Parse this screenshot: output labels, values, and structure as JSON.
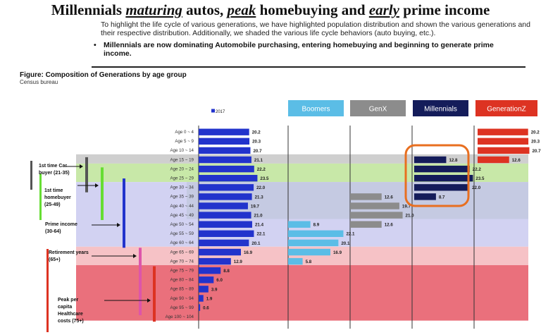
{
  "header": {
    "title_parts": [
      {
        "text": "Millennials ",
        "em": false
      },
      {
        "text": "maturing",
        "em": true
      },
      {
        "text": " autos, ",
        "em": false
      },
      {
        "text": "peak",
        "em": true
      },
      {
        "text": " homebuying and ",
        "em": false
      },
      {
        "text": "early",
        "em": true
      },
      {
        "text": " prime income",
        "em": false
      }
    ],
    "intro": "To highlight the life cycle of various generations, we have highlighted population distribution and shown the various generations and their respective distribution.  Additionally, we shaded the various life cycle behaviors (auto buying, etc.).",
    "bullet_marker": "•",
    "bullet": "Millennials are now dominating Automobile purchasing, entering homebuying and beginning to generate prime income."
  },
  "figure": {
    "title": "Figure: Composition of Generations by age group",
    "source": "Census bureau"
  },
  "colors": {
    "total_bar": "#2233cc",
    "boomers": "#5bbde6",
    "genx": "#8c8c8c",
    "millennials": "#141c5a",
    "genz": "#dd3322",
    "auto_band": "#cfcfcf",
    "home_band": "#c8e8a8",
    "prime_band": "#d2d2f2",
    "retire_band": "#f6c2c6",
    "peak_band": "#ea707c",
    "highlight": "#e86f20"
  },
  "chart_data": {
    "type": "bar",
    "orientation": "horizontal",
    "categories": [
      "Age 0 ~ 4",
      "Age 5 ~ 9",
      "Age 10 ~ 14",
      "Age 15 ~ 19",
      "Age 20 ~ 24",
      "Age 25 ~ 29",
      "Age 30 ~ 34",
      "Age 35 ~ 39",
      "Age 40 ~ 44",
      "Age 45 ~ 49",
      "Age 50 ~ 54",
      "Age 55 ~ 59",
      "Age 60 ~ 64",
      "Age 65 ~ 69",
      "Age 70 ~ 74",
      "Age 75 ~ 79",
      "Age 80 ~ 84",
      "Age 85 ~ 89",
      "Age 90 ~ 94",
      "Age 95 ~ 99",
      "Age 100 ~ 104"
    ],
    "legend": {
      "marker_label": "2017"
    },
    "series": [
      {
        "name": "2017",
        "values": [
          20.2,
          20.3,
          20.7,
          21.1,
          22.2,
          23.5,
          22.0,
          21.3,
          19.7,
          21.0,
          21.4,
          22.1,
          20.1,
          16.9,
          12.9,
          8.8,
          6.0,
          3.9,
          1.9,
          0.6,
          null
        ]
      },
      {
        "name": "Boomers",
        "values": [
          null,
          null,
          null,
          null,
          null,
          null,
          null,
          null,
          null,
          null,
          8.9,
          22.1,
          20.1,
          16.9,
          5.8,
          null,
          null,
          null,
          null,
          null,
          null
        ]
      },
      {
        "name": "GenX",
        "values": [
          null,
          null,
          null,
          null,
          null,
          null,
          null,
          12.6,
          19.7,
          21.0,
          12.6,
          null,
          null,
          null,
          null,
          null,
          null,
          null,
          null,
          null,
          null
        ]
      },
      {
        "name": "Millennials",
        "values": [
          null,
          null,
          null,
          12.8,
          22.2,
          23.5,
          22.0,
          8.7,
          null,
          null,
          null,
          null,
          null,
          null,
          null,
          null,
          null,
          null,
          null,
          null,
          null
        ]
      },
      {
        "name": "GenerationZ",
        "values": [
          20.2,
          20.3,
          20.7,
          12.6,
          null,
          null,
          null,
          null,
          null,
          null,
          null,
          null,
          null,
          null,
          null,
          null,
          null,
          null,
          null,
          null,
          null
        ]
      }
    ],
    "value_labels": {
      "2017": [
        "20.2",
        "20.3",
        "20.7",
        "21.1",
        "22.2",
        "23.5",
        "22.0",
        "21.3",
        "19.7",
        "21.0",
        "21.4",
        "22.1",
        "20.1",
        "16.9",
        "12.9",
        "8.8",
        "6.0",
        "3.9",
        "1.9",
        "0.6",
        ""
      ],
      "Boomers": [
        "",
        "",
        "",
        "",
        "",
        "",
        "",
        "",
        "",
        "",
        "8.9",
        "22.1",
        "20.1",
        "16.9",
        "5.8",
        "",
        "",
        "",
        "",
        "",
        ""
      ],
      "GenX": [
        "",
        "",
        "",
        "",
        "",
        "",
        "",
        "12.6",
        "19.7",
        "21.0",
        "12.6",
        "",
        "",
        "",
        "",
        "",
        "",
        "",
        "",
        "",
        ""
      ],
      "Millennials": [
        "",
        "",
        "",
        "12.8",
        "22.2",
        "23.5",
        "22.0",
        "8.7",
        "",
        "",
        "",
        "",
        "",
        "",
        "",
        "",
        "",
        "",
        "",
        "",
        ""
      ],
      "GenerationZ": [
        "20.2",
        "20.3",
        "20.7",
        "12.6",
        "",
        "",
        "",
        "",
        "",
        "",
        "",
        "",
        "",
        "",
        "",
        "",
        "",
        "",
        "",
        "",
        ""
      ]
    },
    "generation_headers": [
      "Boomers",
      "GenX",
      "Millennials",
      "GenerationZ"
    ],
    "life_stages": [
      {
        "label": "1st time Car buyer (21-35)",
        "rows": [
          3,
          6
        ]
      },
      {
        "label": "1st time homebuyer (25-49)",
        "rows": [
          4,
          9
        ]
      },
      {
        "label": "Prime income (30-64)",
        "rows": [
          6,
          12
        ]
      },
      {
        "label": "Retirement years (65+)",
        "rows": [
          13,
          20
        ]
      },
      {
        "label": "Peak per capita Healthcare costs (75+)",
        "rows": [
          15,
          20
        ]
      }
    ],
    "highlight": {
      "series": "Millennials",
      "rows": [
        3,
        7
      ]
    },
    "grid": false,
    "legend_position": "top"
  }
}
